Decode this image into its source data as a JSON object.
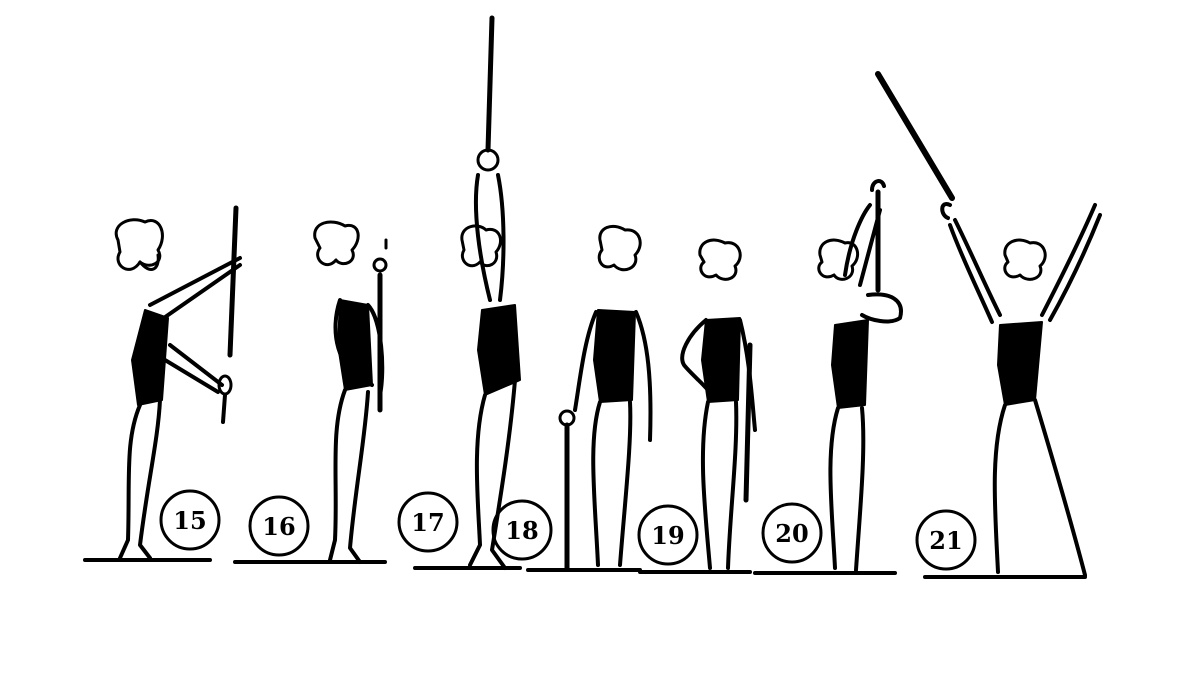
{
  "figures": [
    {
      "number": "15",
      "pose": "staff-held-forward"
    },
    {
      "number": "16",
      "pose": "staff-held-vertical-front"
    },
    {
      "number": "17",
      "pose": "staff-raised-overhead"
    },
    {
      "number": "18",
      "pose": "staff-resting-on-floor"
    },
    {
      "number": "19",
      "pose": "hand-on-hip-staff-beside"
    },
    {
      "number": "20",
      "pose": "staff-raised-over-head"
    },
    {
      "number": "21",
      "pose": "arms-open-staff-diagonal"
    }
  ],
  "colors": {
    "ink": "#000000",
    "paper": "#ffffff"
  }
}
